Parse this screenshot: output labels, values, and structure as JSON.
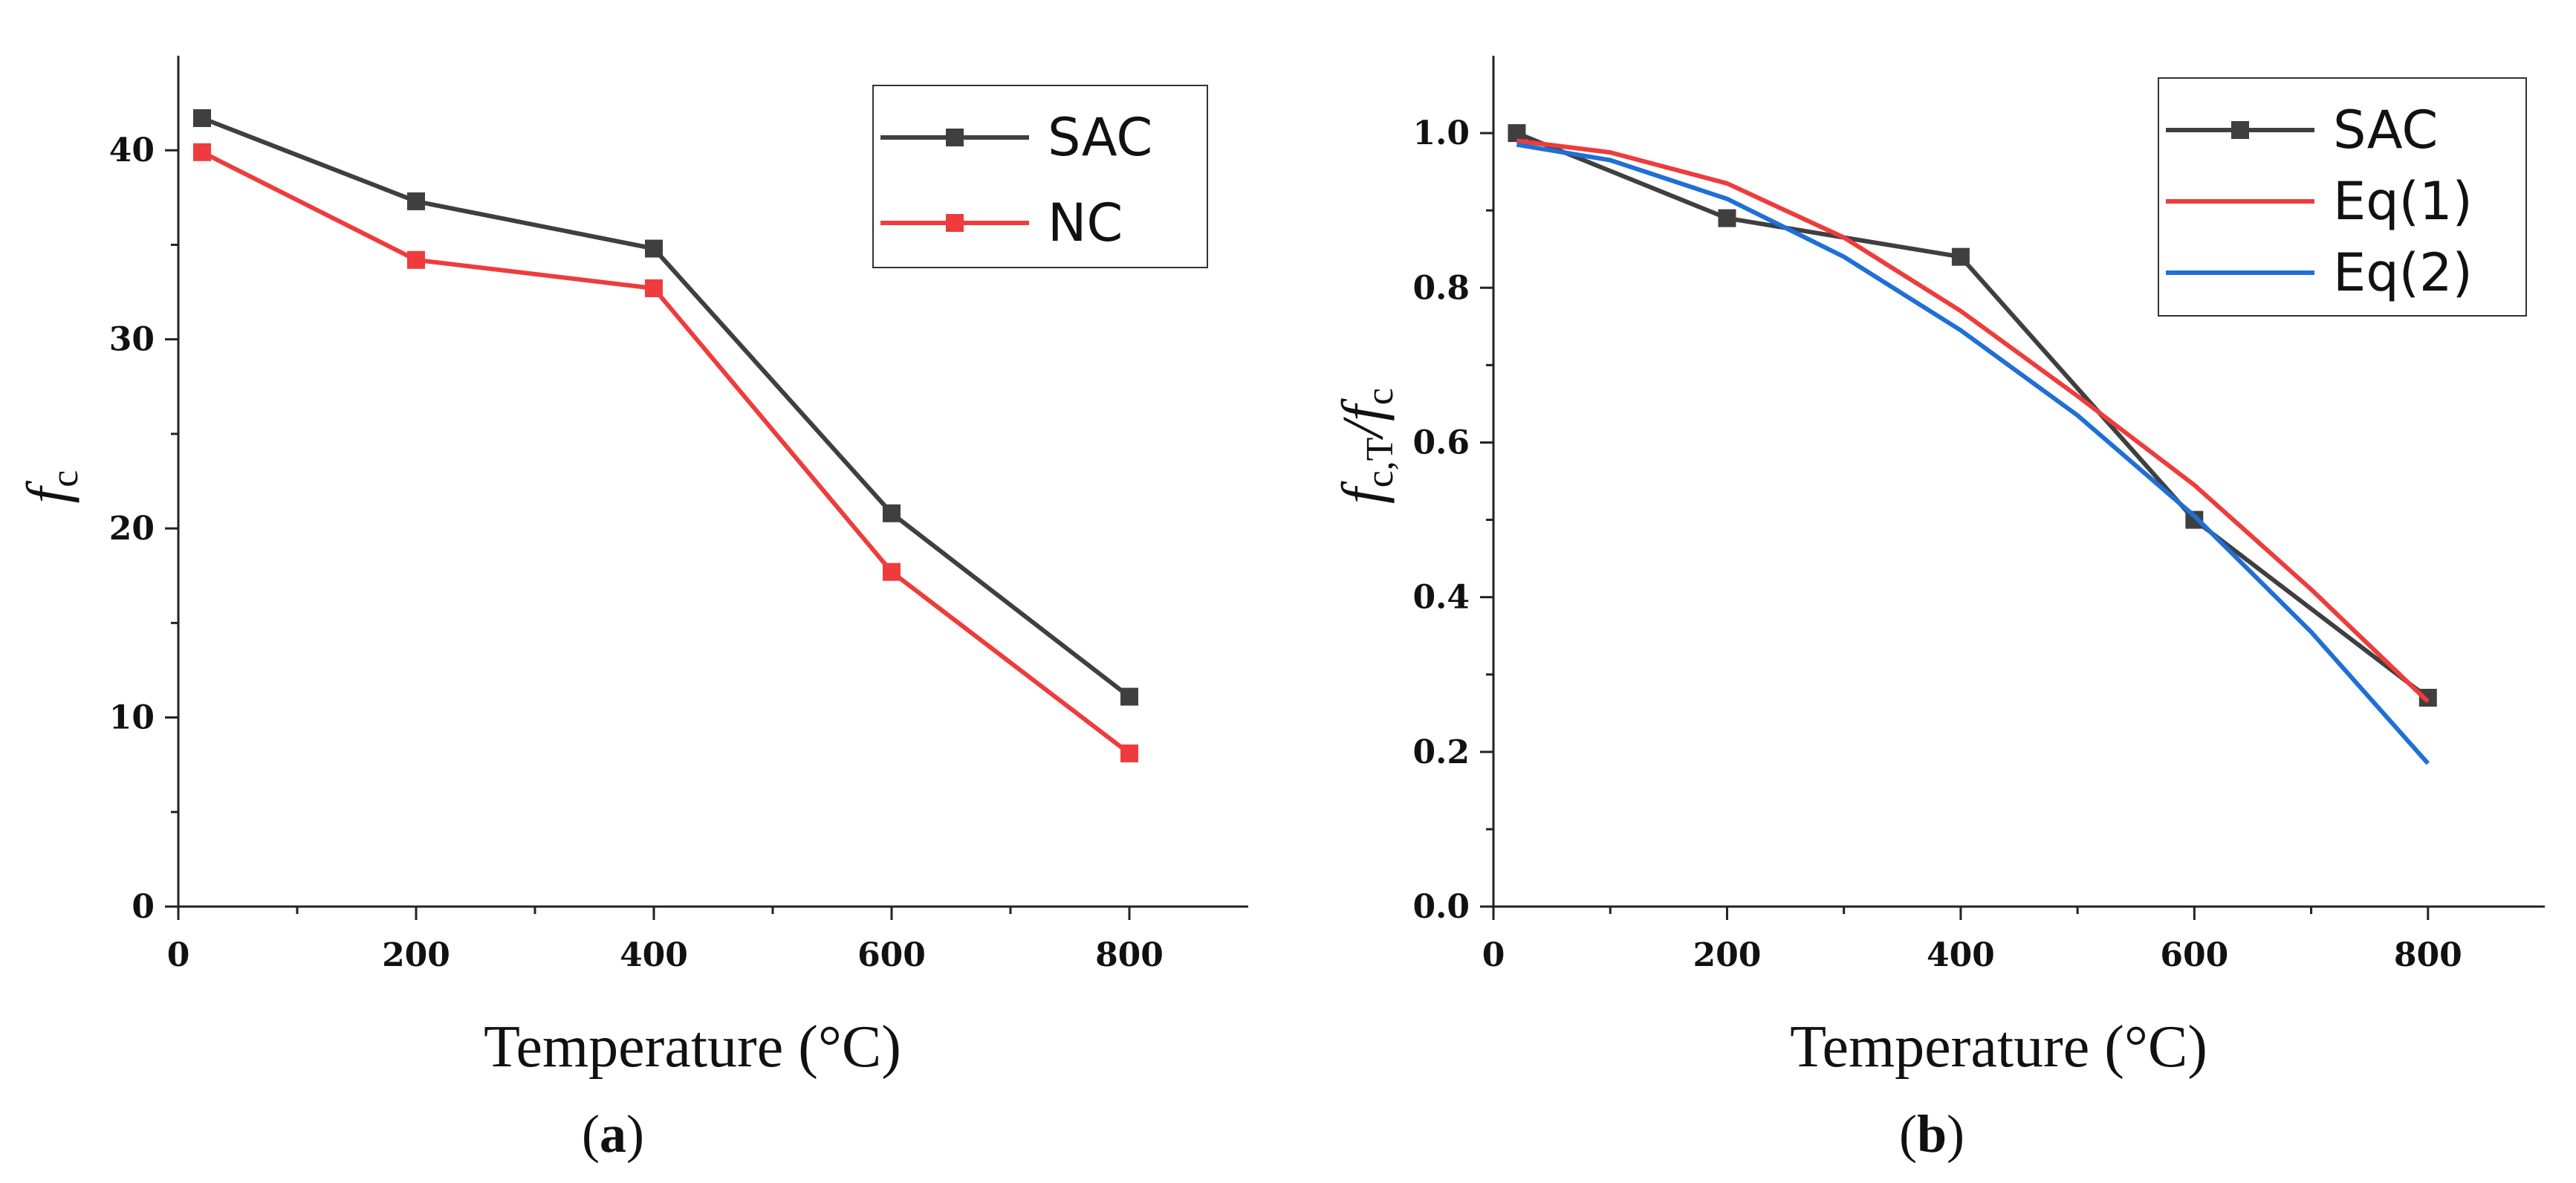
{
  "chart_data": [
    {
      "type": "line",
      "panel_label": {
        "open": "(",
        "letter": "a",
        "close": ")"
      },
      "xlabel": "Temperature (°C)",
      "ylabel": {
        "main": "f",
        "sub": "c"
      },
      "xlim": [
        0,
        900
      ],
      "ylim": [
        0,
        45
      ],
      "xticks": [
        0,
        200,
        400,
        600,
        800
      ],
      "yticks": [
        0,
        10,
        20,
        30,
        40
      ],
      "x": [
        20,
        200,
        400,
        600,
        800
      ],
      "series": [
        {
          "name": "SAC",
          "color": "#3f3f3f",
          "marker": "square",
          "values": [
            41.7,
            37.3,
            34.8,
            20.8,
            11.1
          ]
        },
        {
          "name": "NC",
          "color": "#ee3c3c",
          "marker": "square",
          "values": [
            39.9,
            34.2,
            32.7,
            17.7,
            8.1
          ]
        }
      ],
      "legend_position": "top-right",
      "grid": false
    },
    {
      "type": "line",
      "panel_label": {
        "open": "(",
        "letter": "b",
        "close": ")"
      },
      "xlabel": "Temperature (°C)",
      "ylabel": {
        "main": "f",
        "sub": "c,T",
        "slash": "/",
        "main2": "f",
        "sub2": "c"
      },
      "xlim": [
        0,
        900
      ],
      "ylim": [
        0,
        1.1
      ],
      "xticks": [
        0,
        200,
        400,
        600,
        800
      ],
      "yticks": [
        "0.0",
        "0.2",
        "0.4",
        "0.6",
        "0.8",
        "1.0"
      ],
      "series": [
        {
          "name": "SAC",
          "color": "#3f3f3f",
          "marker": "square",
          "x": [
            20,
            200,
            400,
            600,
            800
          ],
          "values": [
            1.0,
            0.89,
            0.84,
            0.5,
            0.27
          ]
        },
        {
          "name": "Eq(1)",
          "color": "#ee3c3c",
          "marker": "none",
          "x": [
            20,
            100,
            200,
            300,
            400,
            500,
            600,
            700,
            800
          ],
          "values": [
            0.99,
            0.975,
            0.935,
            0.865,
            0.77,
            0.66,
            0.545,
            0.41,
            0.265
          ]
        },
        {
          "name": "Eq(2)",
          "color": "#1f6fd6",
          "marker": "none",
          "x": [
            20,
            100,
            200,
            300,
            400,
            500,
            600,
            700,
            800
          ],
          "values": [
            0.985,
            0.965,
            0.915,
            0.84,
            0.745,
            0.635,
            0.505,
            0.355,
            0.185
          ]
        }
      ],
      "legend_position": "top-right",
      "grid": false
    }
  ]
}
